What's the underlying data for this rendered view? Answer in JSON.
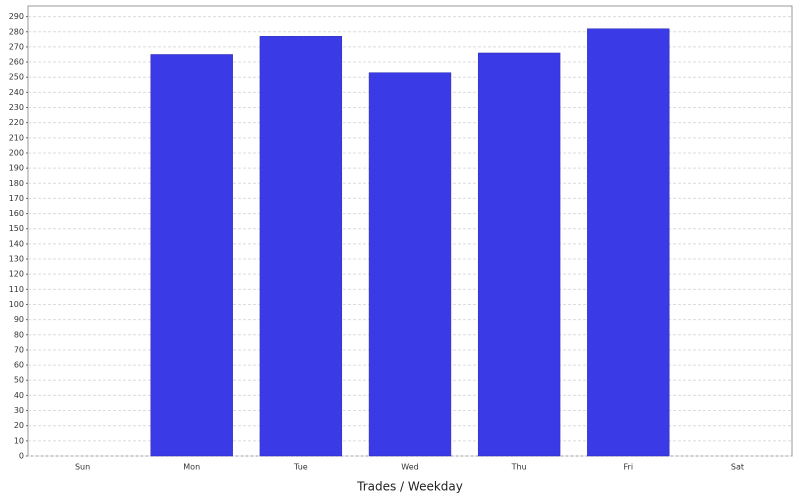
{
  "chart_data": {
    "type": "bar",
    "x_label": "Trades / Weekday",
    "categories": [
      "Sun",
      "Mon",
      "Tue",
      "Wed",
      "Thu",
      "Fri",
      "Sat"
    ],
    "values": [
      0,
      265,
      277,
      253,
      266,
      282,
      0
    ],
    "color": "#3a3ae6",
    "ylim": [
      0,
      297
    ],
    "yticks": [
      0,
      10,
      20,
      30,
      40,
      50,
      60,
      70,
      80,
      90,
      100,
      110,
      120,
      130,
      140,
      150,
      160,
      170,
      180,
      190,
      200,
      210,
      220,
      230,
      240,
      250,
      260,
      270,
      280,
      290
    ],
    "grid": true
  }
}
